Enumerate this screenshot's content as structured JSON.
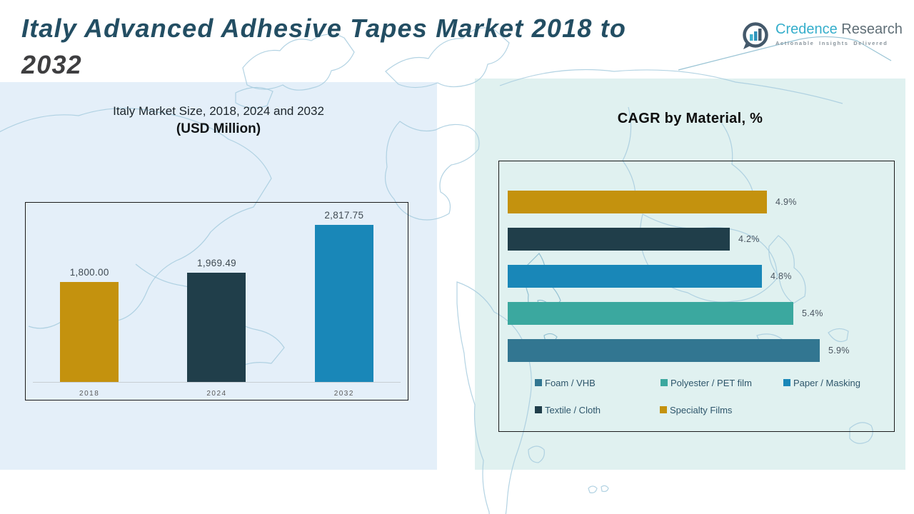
{
  "header": {
    "title_main": "Italy Advanced Adhesive Tapes Market 2018 to",
    "title_year": "2032",
    "logo": {
      "brand_primary": "Credence",
      "brand_secondary": "Research",
      "tagline": "Actionable Insights Delivered"
    }
  },
  "colors": {
    "title_text": "#234E63",
    "title_year_text": "#3E3E40",
    "panel_left_bg": "#E4EFF9",
    "panel_right_bg": "#E0F1F0",
    "gold": "#C4920E",
    "dark_slate": "#203E4A",
    "blue": "#1987B8",
    "teal": "#3BA89F",
    "steel_blue": "#327691",
    "brand_cyan": "#35AECB",
    "brand_gray": "#5F6E76"
  },
  "chart_data": [
    {
      "type": "bar",
      "title": "Italy Market Size, 2018, 2024 and 2032",
      "subtitle": "(USD Million)",
      "categories": [
        "2018",
        "2024",
        "2032"
      ],
      "values": [
        1800.0,
        1969.49,
        2817.75
      ],
      "value_labels": [
        "1,800.00",
        "1,969.49",
        "2,817.75"
      ],
      "bar_colors": [
        "#C4920E",
        "#203E4A",
        "#1987B8"
      ],
      "xlabel": "",
      "ylabel": "",
      "ylim": [
        0,
        3000
      ],
      "grid": false,
      "legend": "none"
    },
    {
      "type": "bar-horizontal",
      "title": "CAGR by Material, %",
      "categories": [
        "Specialty Films",
        "Textile / Cloth",
        "Paper / Masking",
        "Polyester / PET film",
        "Foam / VHB"
      ],
      "values": [
        4.9,
        4.2,
        4.8,
        5.4,
        5.9
      ],
      "value_labels": [
        "4.9%",
        "4.2%",
        "4.8%",
        "5.4%",
        "5.9%"
      ],
      "bar_colors": [
        "#C4920E",
        "#203E4A",
        "#1987B8",
        "#3BA89F",
        "#327691"
      ],
      "xlim": [
        0,
        7.3
      ],
      "grid": false,
      "legend_position": "bottom",
      "legend_items": [
        {
          "label": "Foam / VHB",
          "color": "#327691"
        },
        {
          "label": "Polyester / PET film",
          "color": "#3BA89F"
        },
        {
          "label": "Paper / Masking",
          "color": "#1987B8"
        },
        {
          "label": "Textile / Cloth",
          "color": "#203E4A"
        },
        {
          "label": "Specialty Films",
          "color": "#C4920E"
        }
      ]
    }
  ]
}
